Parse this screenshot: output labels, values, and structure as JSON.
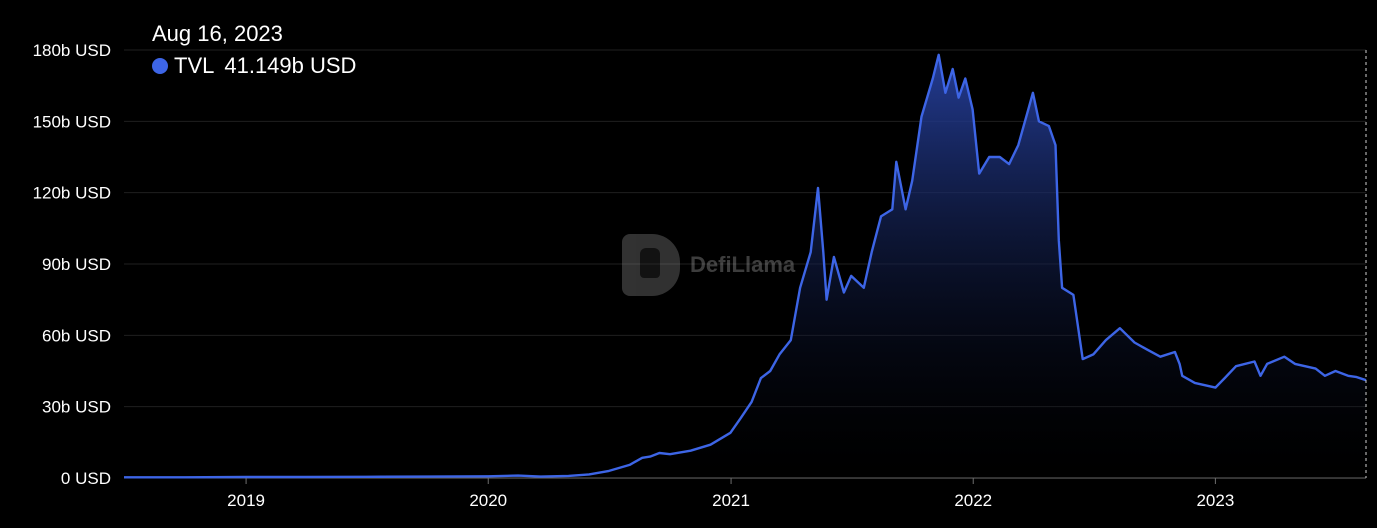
{
  "tooltip": {
    "date": "Aug 16, 2023",
    "series_name": "TVL",
    "value": "41.149b USD"
  },
  "watermark": {
    "text": "DefiLlama"
  },
  "colors": {
    "line": "#3d65e6",
    "fill_top": "#26409e",
    "background": "#000000",
    "grid": "#1f1f1f"
  },
  "chart_data": {
    "type": "area",
    "series": [
      {
        "name": "TVL",
        "unit": "b USD"
      }
    ],
    "y_ticks": [
      "0 USD",
      "30b USD",
      "60b USD",
      "90b USD",
      "120b USD",
      "150b USD",
      "180b USD"
    ],
    "ylim": [
      0,
      180
    ],
    "x_ticks": [
      "2019",
      "2020",
      "2021",
      "2022",
      "2023"
    ],
    "xlim": [
      "2018-07-01",
      "2023-08-16"
    ],
    "grid": true,
    "points": [
      [
        "2018-07-01",
        0.3
      ],
      [
        "2018-10-01",
        0.3
      ],
      [
        "2019-01-01",
        0.4
      ],
      [
        "2019-04-01",
        0.4
      ],
      [
        "2019-07-01",
        0.5
      ],
      [
        "2019-10-01",
        0.6
      ],
      [
        "2020-01-01",
        0.7
      ],
      [
        "2020-02-15",
        1.0
      ],
      [
        "2020-03-20",
        0.6
      ],
      [
        "2020-05-01",
        0.9
      ],
      [
        "2020-06-01",
        1.5
      ],
      [
        "2020-07-01",
        3.0
      ],
      [
        "2020-08-01",
        5.5
      ],
      [
        "2020-08-20",
        8.5
      ],
      [
        "2020-09-01",
        9.0
      ],
      [
        "2020-09-15",
        10.5
      ],
      [
        "2020-10-01",
        10.0
      ],
      [
        "2020-11-01",
        11.5
      ],
      [
        "2020-12-01",
        14.0
      ],
      [
        "2020-12-31",
        19.0
      ],
      [
        "2021-01-15",
        25.0
      ],
      [
        "2021-02-01",
        32.0
      ],
      [
        "2021-02-15",
        42.0
      ],
      [
        "2021-03-01",
        45.0
      ],
      [
        "2021-03-15",
        52.0
      ],
      [
        "2021-04-01",
        58.0
      ],
      [
        "2021-04-15",
        80.0
      ],
      [
        "2021-05-01",
        95.0
      ],
      [
        "2021-05-12",
        122.0
      ],
      [
        "2021-05-20",
        95.0
      ],
      [
        "2021-05-25",
        75.0
      ],
      [
        "2021-06-05",
        93.0
      ],
      [
        "2021-06-20",
        78.0
      ],
      [
        "2021-07-01",
        85.0
      ],
      [
        "2021-07-20",
        80.0
      ],
      [
        "2021-08-01",
        95.0
      ],
      [
        "2021-08-15",
        110.0
      ],
      [
        "2021-09-01",
        113.0
      ],
      [
        "2021-09-07",
        133.0
      ],
      [
        "2021-09-21",
        113.0
      ],
      [
        "2021-10-01",
        125.0
      ],
      [
        "2021-10-15",
        152.0
      ],
      [
        "2021-11-01",
        168.0
      ],
      [
        "2021-11-10",
        178.0
      ],
      [
        "2021-11-20",
        162.0
      ],
      [
        "2021-12-01",
        172.0
      ],
      [
        "2021-12-10",
        160.0
      ],
      [
        "2021-12-20",
        168.0
      ],
      [
        "2021-12-31",
        155.0
      ],
      [
        "2022-01-10",
        128.0
      ],
      [
        "2022-01-25",
        135.0
      ],
      [
        "2022-02-10",
        135.0
      ],
      [
        "2022-02-24",
        132.0
      ],
      [
        "2022-03-10",
        140.0
      ],
      [
        "2022-03-25",
        155.0
      ],
      [
        "2022-04-01",
        162.0
      ],
      [
        "2022-04-10",
        150.0
      ],
      [
        "2022-04-25",
        148.0
      ],
      [
        "2022-05-05",
        140.0
      ],
      [
        "2022-05-10",
        100.0
      ],
      [
        "2022-05-15",
        80.0
      ],
      [
        "2022-06-01",
        77.0
      ],
      [
        "2022-06-15",
        50.0
      ],
      [
        "2022-07-01",
        52.0
      ],
      [
        "2022-07-20",
        58.0
      ],
      [
        "2022-08-10",
        63.0
      ],
      [
        "2022-09-01",
        57.0
      ],
      [
        "2022-09-20",
        54.0
      ],
      [
        "2022-10-10",
        51.0
      ],
      [
        "2022-11-01",
        53.0
      ],
      [
        "2022-11-08",
        48.0
      ],
      [
        "2022-11-12",
        43.0
      ],
      [
        "2022-12-01",
        40.0
      ],
      [
        "2023-01-01",
        38.0
      ],
      [
        "2023-01-15",
        42.0
      ],
      [
        "2023-02-01",
        47.0
      ],
      [
        "2023-03-01",
        49.0
      ],
      [
        "2023-03-10",
        43.0
      ],
      [
        "2023-03-20",
        48.0
      ],
      [
        "2023-04-15",
        51.0
      ],
      [
        "2023-05-01",
        48.0
      ],
      [
        "2023-06-01",
        46.0
      ],
      [
        "2023-06-15",
        43.0
      ],
      [
        "2023-07-01",
        45.0
      ],
      [
        "2023-07-20",
        43.0
      ],
      [
        "2023-08-01",
        42.5
      ],
      [
        "2023-08-16",
        41.149
      ]
    ]
  }
}
